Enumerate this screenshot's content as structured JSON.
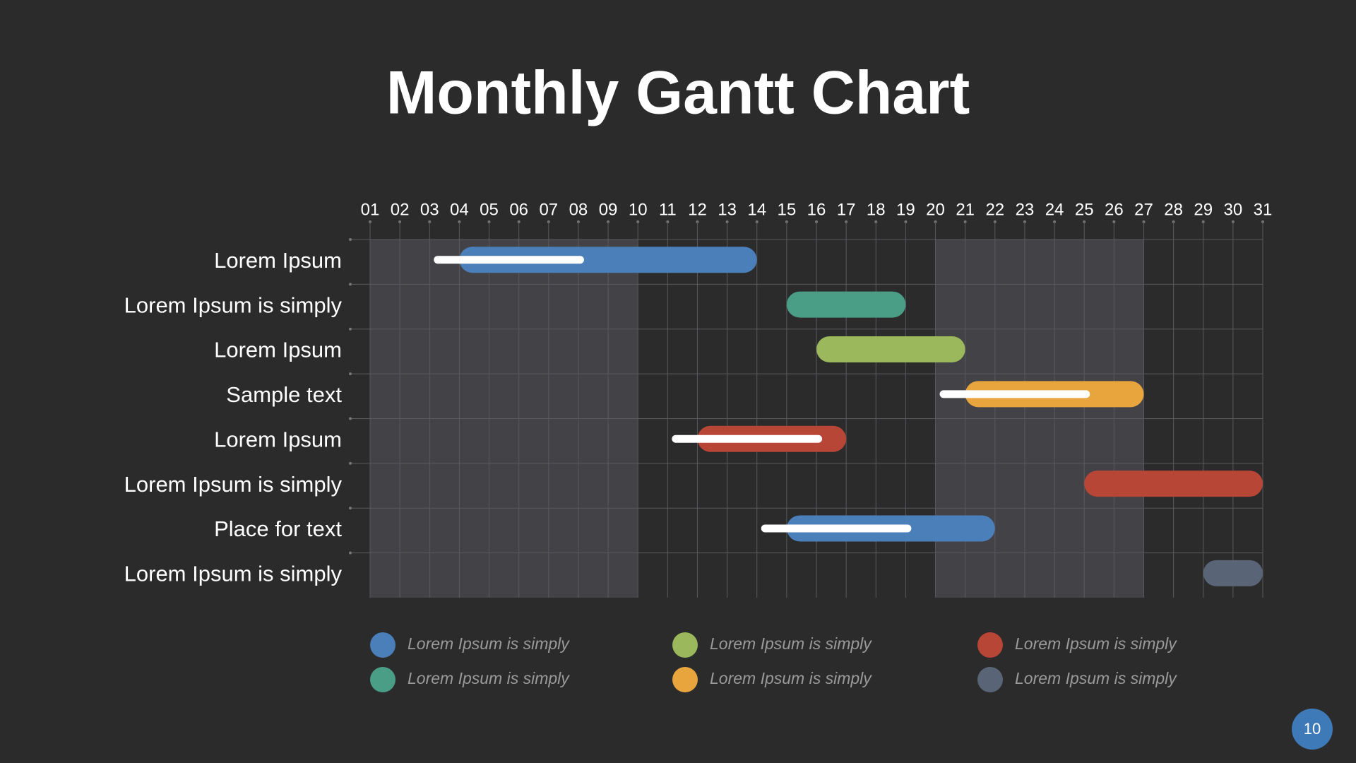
{
  "chart_data": {
    "type": "gantt",
    "title": "Monthly Gantt Chart",
    "categories": [
      "Lorem Ipsum",
      "Lorem Ipsum is simply",
      "Lorem Ipsum",
      "Sample text",
      "Lorem Ipsum",
      "Lorem Ipsum is simply",
      "Place for text",
      "Lorem Ipsum is simply"
    ],
    "xlim": [
      1,
      31
    ],
    "xticks": [
      {
        "value": 1,
        "label": "01"
      },
      {
        "value": 2,
        "label": "02"
      },
      {
        "value": 3,
        "label": "03"
      },
      {
        "value": 4,
        "label": "04"
      },
      {
        "value": 5,
        "label": "05"
      },
      {
        "value": 6,
        "label": "06"
      },
      {
        "value": 7,
        "label": "07"
      },
      {
        "value": 8,
        "label": "08"
      },
      {
        "value": 9,
        "label": "09"
      },
      10,
      11,
      12,
      13,
      14,
      15,
      16,
      17,
      18,
      19,
      20,
      21,
      22,
      23,
      24,
      25,
      26,
      27,
      28,
      29,
      30,
      31
    ],
    "shaded_ranges": [
      [
        1,
        10
      ],
      [
        20,
        27
      ]
    ],
    "grid": true,
    "tasks": [
      {
        "start": 4,
        "end": 14,
        "color": "#4a7fba",
        "progress": [
          3,
          8
        ]
      },
      {
        "start": 15,
        "end": 19,
        "color": "#4a9e86",
        "progress": null
      },
      {
        "start": 16,
        "end": 21,
        "color": "#9bb85c",
        "progress": null
      },
      {
        "start": 21,
        "end": 27,
        "color": "#e8a53e",
        "progress": [
          20,
          25
        ]
      },
      {
        "start": 12,
        "end": 17,
        "color": "#b84636",
        "progress": [
          11,
          16
        ]
      },
      {
        "start": 25,
        "end": 31,
        "color": "#b84636",
        "progress": null
      },
      {
        "start": 15,
        "end": 22,
        "color": "#4a7fba",
        "progress": [
          14,
          19
        ]
      },
      {
        "start": 29,
        "end": 31,
        "color": "#5a6477",
        "progress": null
      }
    ],
    "series": [
      {
        "name": "Lorem Ipsum is simply",
        "color": "#4a7fba"
      },
      {
        "name": "Lorem Ipsum is simply",
        "color": "#4a9e86"
      },
      {
        "name": "Lorem Ipsum is simply",
        "color": "#9bb85c"
      },
      {
        "name": "Lorem Ipsum is simply",
        "color": "#e8a53e"
      },
      {
        "name": "Lorem Ipsum is simply",
        "color": "#b84636"
      },
      {
        "name": "Lorem Ipsum is simply",
        "color": "#5a6477"
      }
    ]
  },
  "page_number": "10"
}
